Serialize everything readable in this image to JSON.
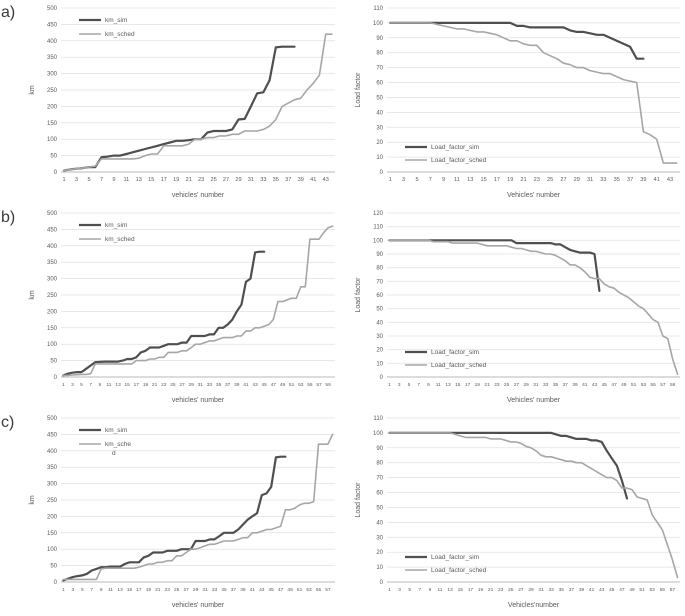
{
  "panels": [
    "a)",
    "b)",
    "c)"
  ],
  "colors": {
    "sim": "#4f4f4f",
    "sched": "#a6a6a6",
    "grid": "#e0e0e0",
    "axis": "#b8b8b8",
    "text": "#595959"
  },
  "chart_data": [
    {
      "type": "line",
      "panel": "a",
      "position": "left",
      "ylabel": "km",
      "xlabel": "vehicles' number",
      "ymin": 0,
      "ymax": 500,
      "ystep": 50,
      "xmax": 44,
      "xtick_end": 43,
      "legend_pos": "top-left",
      "series": [
        {
          "name": "km_sim",
          "legend_lines": [
            "km_sim"
          ],
          "color": "#4f4f4f",
          "width": 2.2,
          "values": [
            5,
            8,
            10,
            12,
            15,
            15,
            45,
            47,
            50,
            50,
            55,
            60,
            65,
            70,
            75,
            80,
            85,
            90,
            95,
            95,
            97,
            100,
            100,
            120,
            125,
            125,
            125,
            130,
            160,
            162,
            200,
            240,
            243,
            280,
            380,
            382,
            382,
            382
          ]
        },
        {
          "name": "km_sched",
          "legend_lines": [
            "km_sched"
          ],
          "color": "#a6a6a6",
          "width": 1.6,
          "values": [
            5,
            8,
            10,
            12,
            15,
            18,
            40,
            40,
            40,
            40,
            40,
            40,
            42,
            50,
            55,
            55,
            80,
            80,
            80,
            80,
            85,
            100,
            100,
            105,
            105,
            110,
            110,
            115,
            115,
            125,
            125,
            125,
            130,
            140,
            160,
            200,
            210,
            220,
            225,
            250,
            270,
            295,
            420,
            420
          ]
        }
      ]
    },
    {
      "type": "line",
      "panel": "a",
      "position": "right",
      "ylabel": "Load factor",
      "xlabel": "Vehicles' number",
      "ymin": 0,
      "ymax": 110,
      "ystep": 10,
      "xmax": 44,
      "xtick_end": 43,
      "legend_pos": "bottom-left",
      "series": [
        {
          "name": "Load_factor_sim",
          "legend_lines": [
            "Load_factor_sim"
          ],
          "color": "#4f4f4f",
          "width": 2.2,
          "values": [
            100,
            100,
            100,
            100,
            100,
            100,
            100,
            100,
            100,
            100,
            100,
            100,
            100,
            100,
            100,
            100,
            100,
            100,
            100,
            98,
            98,
            97,
            97,
            97,
            97,
            97,
            97,
            95,
            94,
            94,
            93,
            92,
            92,
            90,
            88,
            86,
            84,
            76,
            76
          ]
        },
        {
          "name": "Load_factor_sched",
          "legend_lines": [
            "Load_factor_sched"
          ],
          "color": "#a6a6a6",
          "width": 1.6,
          "values": [
            100,
            100,
            100,
            100,
            100,
            100,
            100,
            99,
            98,
            97,
            96,
            96,
            95,
            94,
            94,
            93,
            92,
            90,
            88,
            88,
            86,
            85,
            85,
            80,
            78,
            76,
            73,
            72,
            70,
            70,
            68,
            67,
            66,
            66,
            64,
            62,
            61,
            60,
            27,
            25,
            22,
            6,
            6,
            6
          ]
        }
      ]
    },
    {
      "type": "line",
      "panel": "b",
      "position": "left",
      "ylabel": "km",
      "xlabel": "vehicles' number",
      "ymin": 0,
      "ymax": 500,
      "ystep": 50,
      "xmax": 60,
      "xtick_end": 59,
      "legend_pos": "top-left",
      "series": [
        {
          "name": "km_sim",
          "legend_lines": [
            "km_sim"
          ],
          "color": "#4f4f4f",
          "width": 2.2,
          "values": [
            5,
            10,
            13,
            15,
            15,
            25,
            35,
            45,
            46,
            47,
            47,
            47,
            47,
            50,
            55,
            55,
            60,
            75,
            80,
            90,
            90,
            90,
            95,
            100,
            100,
            100,
            105,
            105,
            125,
            125,
            125,
            125,
            130,
            130,
            150,
            150,
            160,
            175,
            200,
            220,
            290,
            300,
            380,
            382,
            382
          ]
        },
        {
          "name": "km_sched",
          "legend_lines": [
            "km_sched"
          ],
          "color": "#a6a6a6",
          "width": 1.6,
          "values": [
            5,
            5,
            6,
            7,
            8,
            8,
            10,
            40,
            40,
            40,
            40,
            40,
            40,
            40,
            40,
            40,
            50,
            50,
            50,
            55,
            55,
            60,
            60,
            75,
            75,
            75,
            80,
            80,
            90,
            100,
            100,
            105,
            110,
            110,
            115,
            120,
            120,
            120,
            125,
            125,
            140,
            140,
            150,
            150,
            155,
            160,
            175,
            230,
            230,
            235,
            240,
            240,
            275,
            275,
            420,
            420,
            420,
            440,
            455,
            460
          ]
        }
      ]
    },
    {
      "type": "line",
      "panel": "b",
      "position": "right",
      "ylabel": "Load factor",
      "xlabel": "Vehicles' number",
      "ymin": 0,
      "ymax": 120,
      "ystep": 10,
      "xmax": 60,
      "xtick_end": 59,
      "legend_pos": "bottom-left",
      "series": [
        {
          "name": "Load_factor_sim",
          "legend_lines": [
            "Load_factor_sim"
          ],
          "color": "#4f4f4f",
          "width": 2.2,
          "values": [
            100,
            100,
            100,
            100,
            100,
            100,
            100,
            100,
            100,
            100,
            100,
            100,
            100,
            100,
            100,
            100,
            100,
            100,
            100,
            100,
            100,
            100,
            100,
            100,
            100,
            100,
            98,
            98,
            98,
            98,
            98,
            98,
            98,
            98,
            97,
            97,
            95,
            93,
            92,
            91,
            91,
            91,
            90,
            63
          ]
        },
        {
          "name": "Load_factor_sched",
          "legend_lines": [
            "Load_factor_sched"
          ],
          "color": "#a6a6a6",
          "width": 1.6,
          "values": [
            100,
            100,
            100,
            100,
            100,
            100,
            100,
            100,
            100,
            99,
            99,
            99,
            99,
            98,
            98,
            98,
            98,
            98,
            98,
            97,
            96,
            96,
            96,
            96,
            96,
            95,
            94,
            94,
            93,
            92,
            92,
            91,
            90,
            90,
            89,
            87,
            85,
            82,
            82,
            80,
            77,
            73,
            72,
            72,
            68,
            66,
            65,
            62,
            60,
            58,
            55,
            52,
            50,
            46,
            42,
            40,
            30,
            28,
            13,
            2
          ]
        }
      ]
    },
    {
      "type": "line",
      "panel": "c",
      "position": "left",
      "ylabel": "km",
      "xlabel": "vehicles' number",
      "ymin": 0,
      "ymax": 500,
      "ystep": 50,
      "xmax": 58,
      "xtick_end": 57,
      "legend_pos": "top-left",
      "series": [
        {
          "name": "km_sim",
          "legend_lines": [
            "km_sim"
          ],
          "color": "#4f4f4f",
          "width": 2.2,
          "values": [
            5,
            10,
            15,
            18,
            20,
            25,
            35,
            40,
            45,
            45,
            47,
            47,
            47,
            55,
            60,
            60,
            60,
            75,
            80,
            90,
            90,
            90,
            95,
            95,
            95,
            100,
            100,
            100,
            125,
            125,
            125,
            130,
            130,
            140,
            150,
            150,
            150,
            160,
            175,
            190,
            200,
            210,
            265,
            270,
            290,
            380,
            382,
            382
          ]
        },
        {
          "name": "km_sched",
          "legend_lines": [
            "km_sche",
            "d"
          ],
          "color": "#a6a6a6",
          "width": 1.6,
          "values": [
            8,
            8,
            8,
            8,
            8,
            8,
            8,
            8,
            40,
            42,
            42,
            42,
            42,
            42,
            42,
            42,
            45,
            50,
            55,
            55,
            60,
            60,
            65,
            65,
            80,
            80,
            90,
            100,
            100,
            105,
            110,
            115,
            115,
            120,
            125,
            125,
            125,
            130,
            135,
            135,
            150,
            150,
            155,
            160,
            160,
            165,
            170,
            220,
            220,
            225,
            235,
            240,
            240,
            245,
            420,
            420,
            420,
            450
          ]
        }
      ]
    },
    {
      "type": "line",
      "panel": "c",
      "position": "right",
      "ylabel": "Load factor",
      "xlabel": "Vehicles'number",
      "ymin": 0,
      "ymax": 110,
      "ystep": 10,
      "xmax": 58,
      "xtick_end": 57,
      "legend_pos": "bottom-left",
      "series": [
        {
          "name": "Load_factor_sim",
          "legend_lines": [
            "Load_factor_sim"
          ],
          "color": "#4f4f4f",
          "width": 2.2,
          "values": [
            100,
            100,
            100,
            100,
            100,
            100,
            100,
            100,
            100,
            100,
            100,
            100,
            100,
            100,
            100,
            100,
            100,
            100,
            100,
            100,
            100,
            100,
            100,
            100,
            100,
            100,
            100,
            100,
            100,
            100,
            100,
            100,
            100,
            99,
            98,
            98,
            97,
            96,
            96,
            96,
            95,
            95,
            94,
            88,
            83,
            78,
            68,
            56
          ]
        },
        {
          "name": "Load_factor_sched",
          "legend_lines": [
            "Load_factor_sched"
          ],
          "color": "#a6a6a6",
          "width": 1.6,
          "values": [
            100,
            100,
            100,
            100,
            100,
            100,
            100,
            100,
            100,
            100,
            100,
            100,
            100,
            99,
            98,
            97,
            97,
            97,
            97,
            97,
            96,
            96,
            96,
            95,
            94,
            94,
            93,
            91,
            90,
            88,
            85,
            84,
            84,
            83,
            82,
            81,
            81,
            80,
            80,
            78,
            76,
            74,
            72,
            70,
            70,
            68,
            63,
            63,
            62,
            57,
            56,
            55,
            45,
            40,
            35,
            25,
            15,
            3
          ]
        }
      ]
    }
  ]
}
